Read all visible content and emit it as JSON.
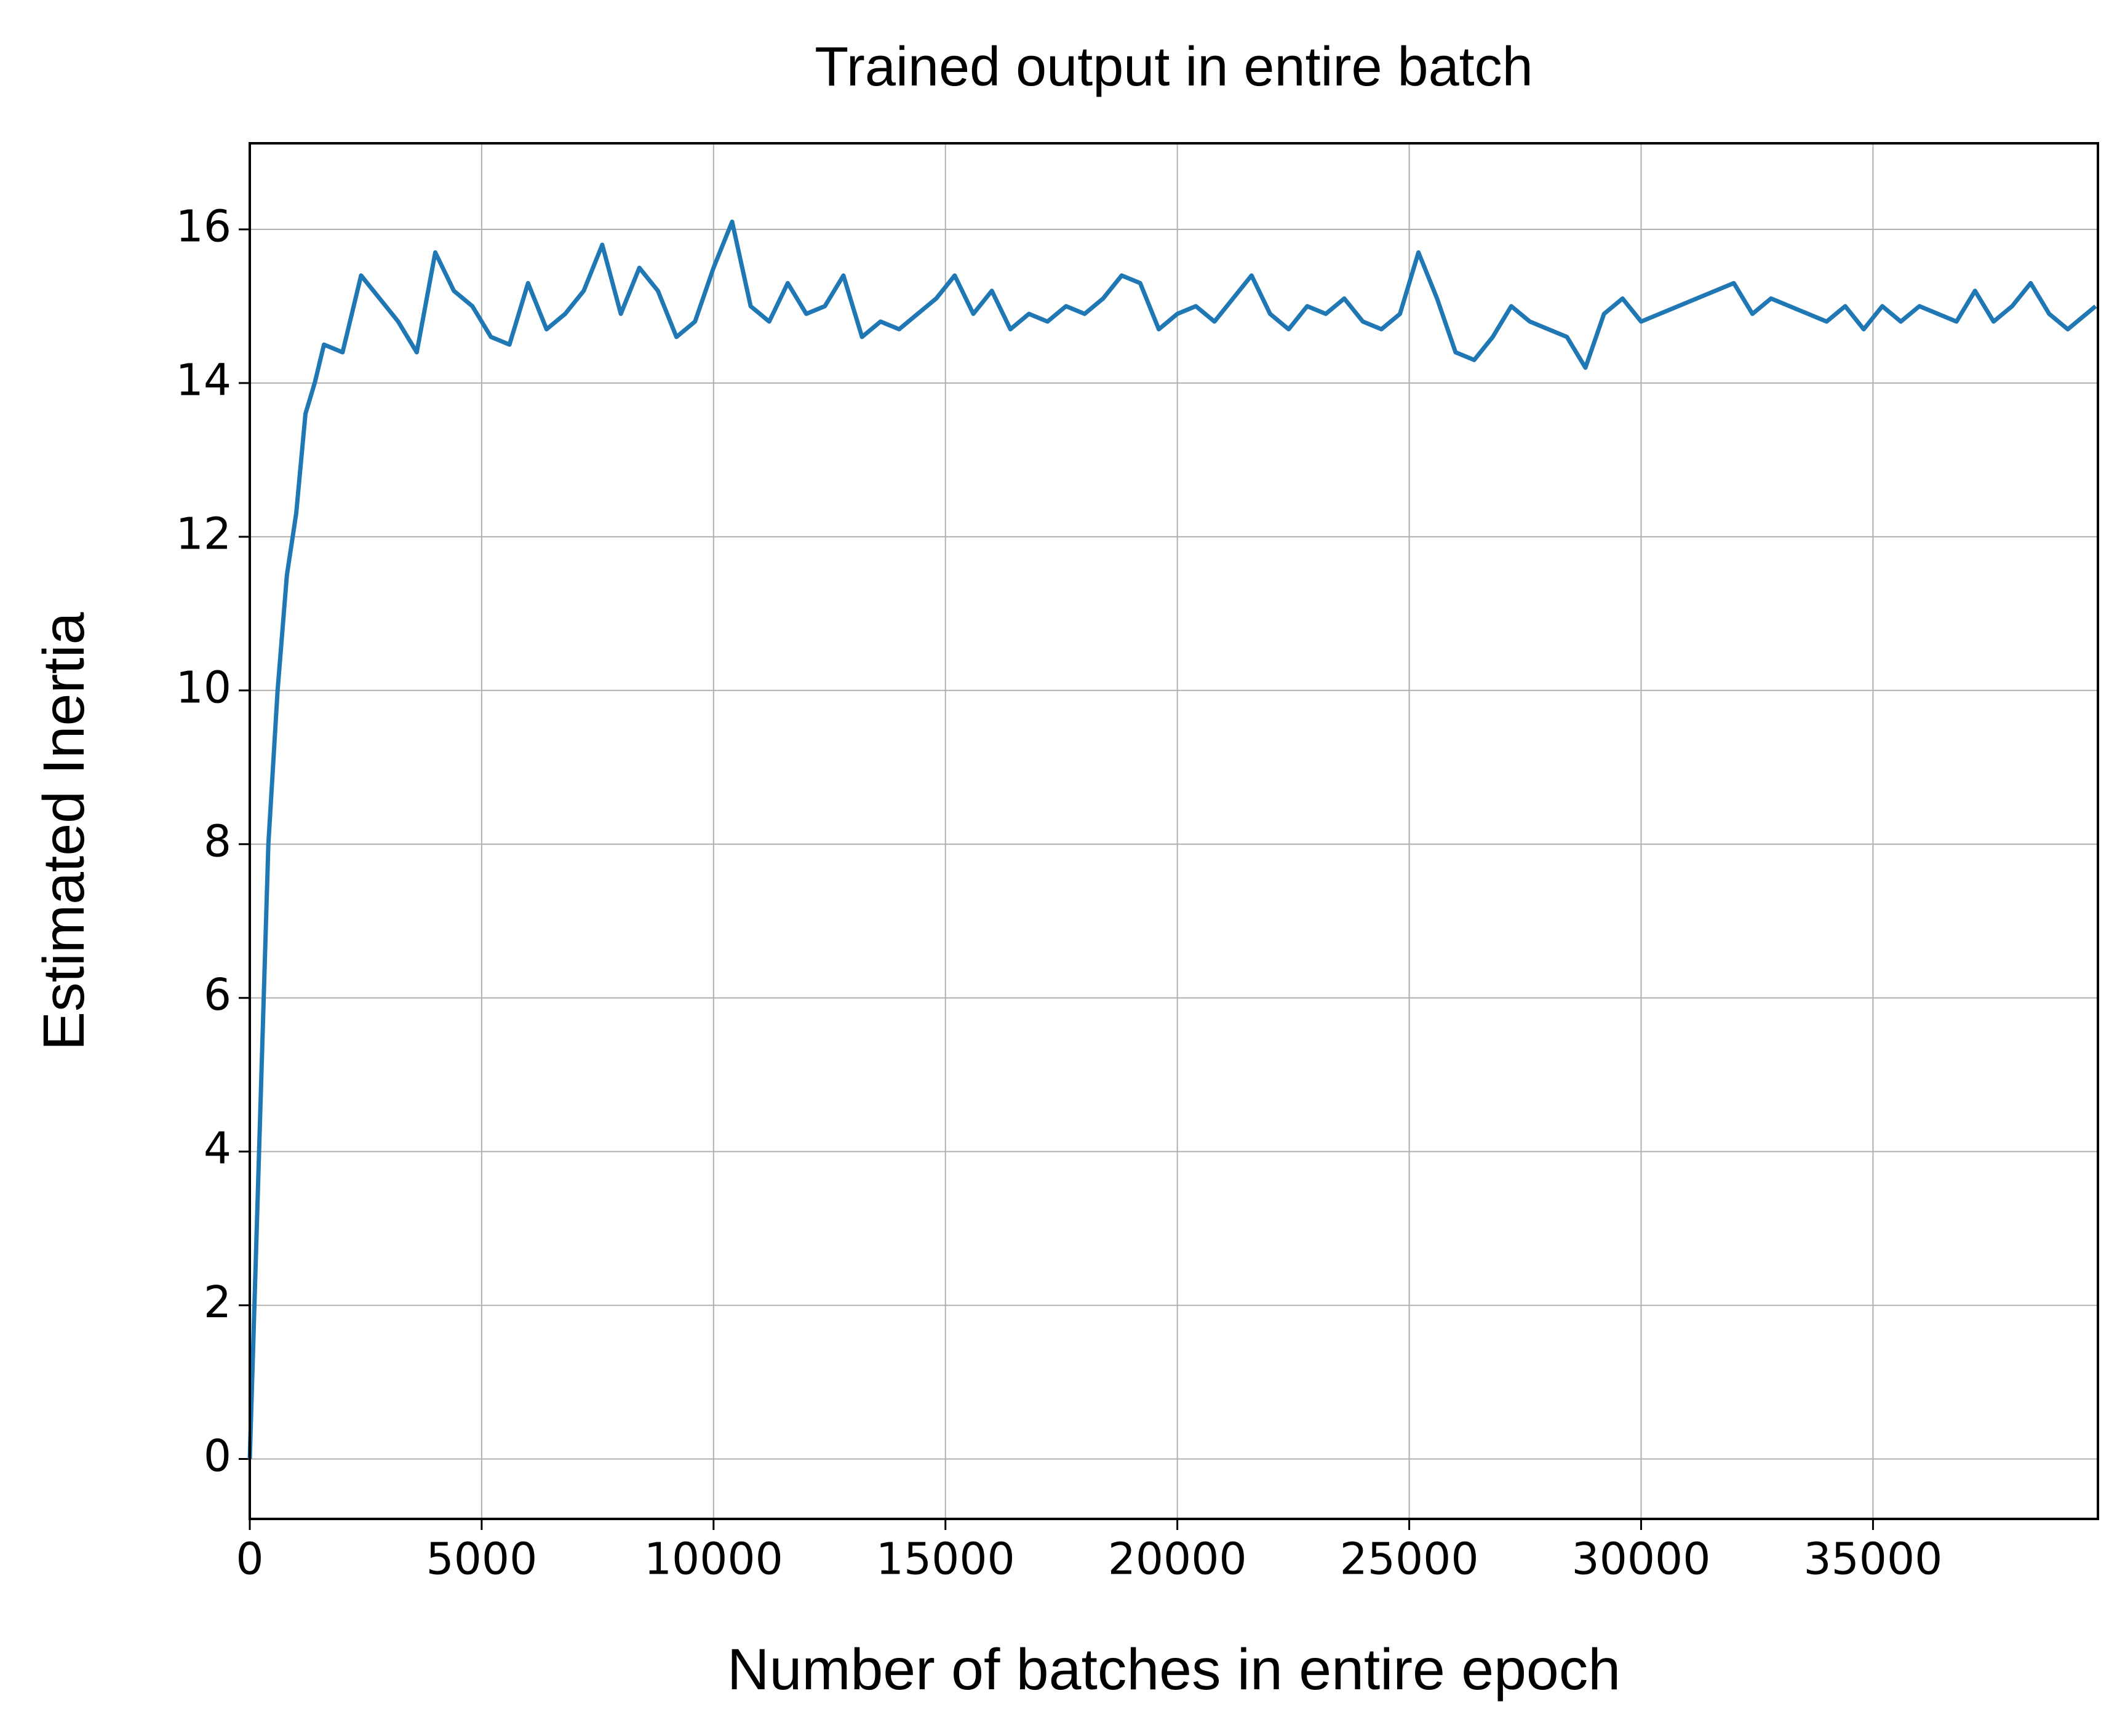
{
  "chart_data": {
    "type": "line",
    "title": "Trained output in entire batch",
    "x_label": "Number of batches in entire epoch",
    "y_label": "Estimated Inertia",
    "x": [
      0,
      200,
      400,
      600,
      800,
      1000,
      1200,
      1400,
      1600,
      2000,
      2400,
      2800,
      3200,
      3600,
      4000,
      4400,
      4800,
      5200,
      5600,
      6000,
      6400,
      6800,
      7200,
      7600,
      8000,
      8400,
      8800,
      9200,
      9600,
      10000,
      10400,
      10800,
      11200,
      11600,
      12000,
      12400,
      12800,
      13200,
      13600,
      14000,
      14400,
      14800,
      15200,
      15600,
      16000,
      16400,
      16800,
      17200,
      17600,
      18000,
      18400,
      18800,
      19200,
      19600,
      20000,
      20400,
      20800,
      21200,
      21600,
      22000,
      22400,
      22800,
      23200,
      23600,
      24000,
      24400,
      24800,
      25200,
      25600,
      26000,
      26400,
      26800,
      27200,
      27600,
      28000,
      28400,
      28800,
      29200,
      29600,
      30000,
      30400,
      30800,
      31200,
      31600,
      32000,
      32400,
      32800,
      33200,
      33600,
      34000,
      34400,
      34800,
      35200,
      35600,
      36000,
      36400,
      36800,
      37200,
      37600,
      38000,
      38400,
      38800,
      39200,
      39600,
      39800
    ],
    "series": [
      {
        "name": "Estimated Inertia",
        "color": "#1f77b4",
        "values": [
          0,
          4,
          8,
          10,
          11.5,
          12.3,
          13.6,
          14.0,
          14.5,
          14.4,
          15.4,
          15.1,
          14.8,
          14.4,
          15.7,
          15.2,
          15.0,
          14.6,
          14.5,
          15.3,
          14.7,
          14.9,
          15.2,
          15.8,
          14.9,
          15.5,
          15.2,
          14.6,
          14.8,
          15.5,
          16.1,
          15.0,
          14.8,
          15.3,
          14.9,
          15.0,
          15.4,
          14.6,
          14.8,
          14.7,
          14.9,
          15.1,
          15.4,
          14.9,
          15.2,
          14.7,
          14.9,
          14.8,
          15.0,
          14.9,
          15.1,
          15.4,
          15.3,
          14.7,
          14.9,
          15.0,
          14.8,
          15.1,
          15.4,
          14.9,
          14.7,
          15.0,
          14.9,
          15.1,
          14.8,
          14.7,
          14.9,
          15.7,
          15.1,
          14.4,
          14.3,
          14.6,
          15.0,
          14.8,
          14.7,
          14.6,
          14.2,
          14.9,
          15.1,
          14.8,
          14.9,
          15.0,
          15.1,
          15.2,
          15.3,
          14.9,
          15.1,
          15.0,
          14.9,
          14.8,
          15.0,
          14.7,
          15.0,
          14.8,
          15.0,
          14.9,
          14.8,
          15.2,
          14.8,
          15.0,
          15.3,
          14.9,
          14.7,
          14.9,
          15.0
        ]
      }
    ],
    "xlim": [
      0,
      39850
    ],
    "ylim": [
      -0.78,
      17.12
    ],
    "xticks": [
      0,
      5000,
      10000,
      15000,
      20000,
      25000,
      30000,
      35000
    ],
    "yticks": [
      0,
      2,
      4,
      6,
      8,
      10,
      12,
      14,
      16
    ],
    "grid": true
  }
}
